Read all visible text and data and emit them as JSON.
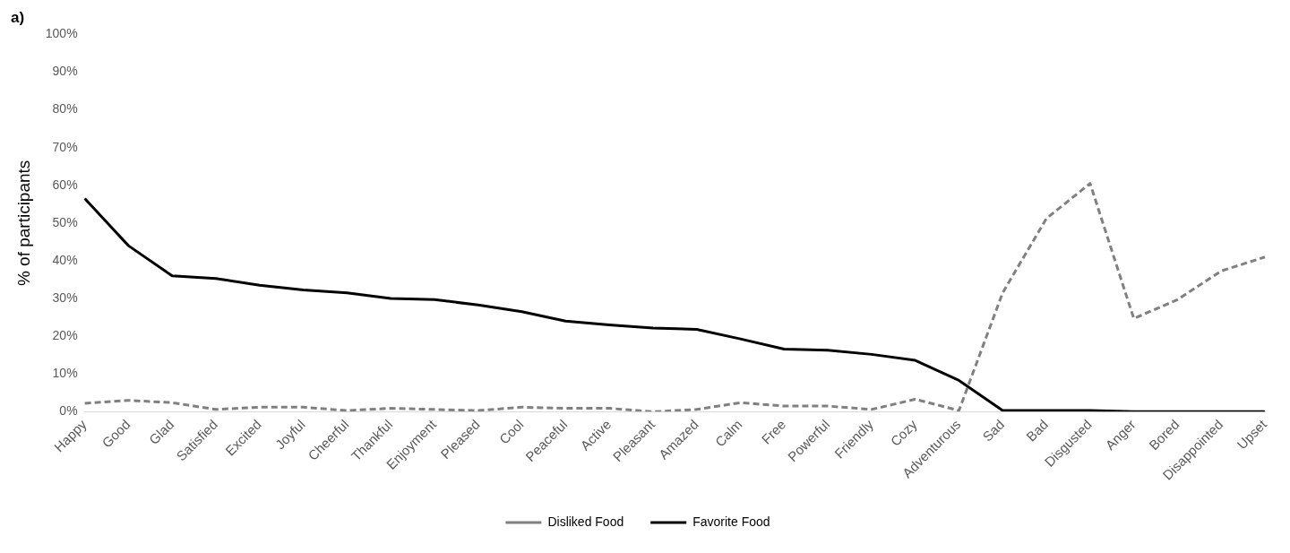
{
  "chart_data": {
    "type": "line",
    "title": "a)",
    "ylabel": "% of participants",
    "categories": [
      "Happy",
      "Good",
      "Glad",
      "Satisfied",
      "Excited",
      "Joyful",
      "Cheerful",
      "Thankful",
      "Enjoyment",
      "Pleased",
      "Cool",
      "Peaceful",
      "Active",
      "Pleasant",
      "Amazed",
      "Calm",
      "Free",
      "Powerful",
      "Friendly",
      "Cozy",
      "Adventurous",
      "Sad",
      "Bad",
      "Disgusted",
      "Anger",
      "Bored",
      "Disappointed",
      "Upset"
    ],
    "series": [
      {
        "name": "Disliked Food",
        "color": "#808080",
        "line_style": "dashed",
        "values": [
          2.2,
          3,
          2.4,
          0.6,
          1.2,
          1.2,
          0.3,
          0.9,
          0.6,
          0.3,
          1.2,
          0.9,
          0.9,
          0,
          0.6,
          2.4,
          1.5,
          1.5,
          0.6,
          3.3,
          0.3,
          31.5,
          51.2,
          60.5,
          24.7,
          29.7,
          37.3,
          41
        ]
      },
      {
        "name": "Favorite Food",
        "color": "#000000",
        "line_style": "solid",
        "values": [
          56.5,
          44,
          36,
          35.3,
          33.5,
          32.3,
          31.5,
          30,
          29.7,
          28.3,
          26.5,
          24,
          23,
          22.2,
          21.8,
          19.3,
          16.6,
          16.3,
          15.2,
          13.6,
          8.3,
          0.3,
          0.3,
          0.3,
          0,
          0,
          0,
          0
        ]
      }
    ],
    "ylim": [
      0,
      100
    ],
    "yticks": [
      {
        "value": 0,
        "label": "0%"
      },
      {
        "value": 10,
        "label": "10%"
      },
      {
        "value": 20,
        "label": "20%"
      },
      {
        "value": 30,
        "label": "30%"
      },
      {
        "value": 40,
        "label": "40%"
      },
      {
        "value": 50,
        "label": "50%"
      },
      {
        "value": 60,
        "label": "60%"
      },
      {
        "value": 70,
        "label": "70%"
      },
      {
        "value": 80,
        "label": "80%"
      },
      {
        "value": 90,
        "label": "90%"
      },
      {
        "value": 100,
        "label": "100%"
      }
    ],
    "grid": false,
    "legend": "bottom",
    "marker": "none"
  }
}
